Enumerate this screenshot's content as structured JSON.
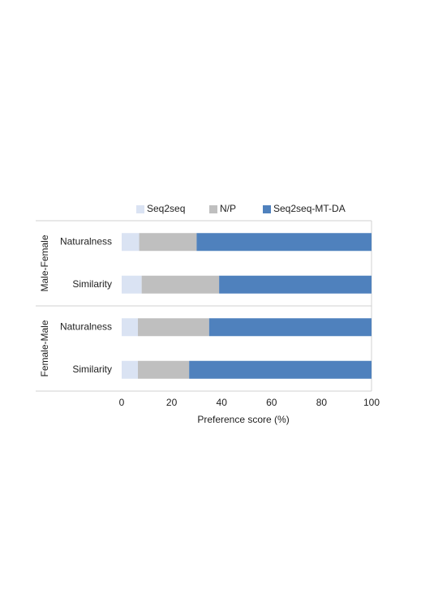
{
  "chart_data": {
    "type": "stacked-barh",
    "x_label": "Preference score (%)",
    "groups": [
      {
        "name": "Male-Female",
        "categories": [
          "Naturalness",
          "Similarity"
        ]
      },
      {
        "name": "Female-Male",
        "categories": [
          "Naturalness",
          "Similarity"
        ]
      }
    ],
    "series": [
      {
        "name": "Seq2seq",
        "color": "#dae3f3",
        "values": [
          7,
          8,
          6.5,
          6.5
        ]
      },
      {
        "name": "N/P",
        "color": "#bfbfbf",
        "values": [
          23,
          31,
          28.5,
          20.5
        ]
      },
      {
        "name": "Seq2seq-MT-DA",
        "color": "#4f81bd",
        "values": [
          70,
          61,
          65,
          73
        ]
      }
    ],
    "xlim": [
      0,
      100
    ],
    "xticks": [
      0,
      20,
      40,
      60,
      80,
      100
    ],
    "legend": "top"
  }
}
